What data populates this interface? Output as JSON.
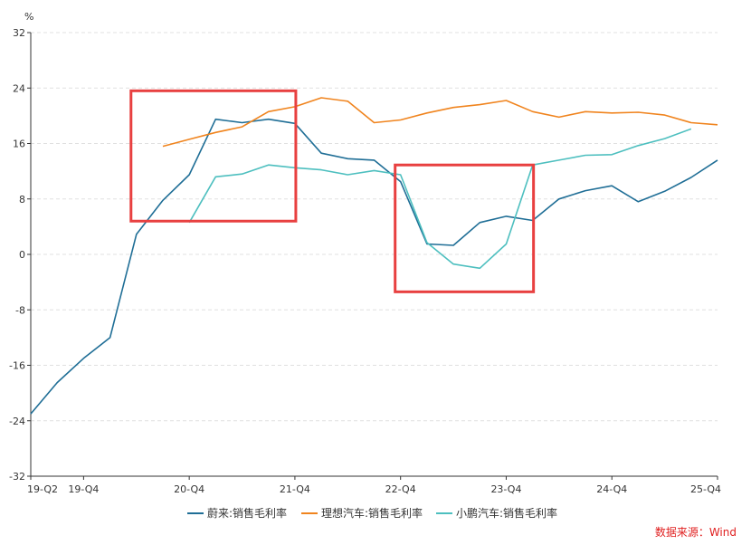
{
  "chart_data": {
    "type": "line",
    "title": "",
    "xlabel": "",
    "ylabel": "",
    "yunit": "%",
    "ylim": [
      -32,
      32
    ],
    "yticks": [
      -32,
      -24,
      -16,
      -8,
      0,
      8,
      16,
      24,
      32
    ],
    "grid": "horizontal-dashed",
    "legend_position": "bottom",
    "x": [
      "19-Q2",
      "19-Q3",
      "19-Q4",
      "20-Q1",
      "20-Q2",
      "20-Q3",
      "20-Q4",
      "21-Q1",
      "21-Q2",
      "21-Q3",
      "21-Q4",
      "22-Q1",
      "22-Q2",
      "22-Q3",
      "22-Q4",
      "23-Q1",
      "23-Q2",
      "23-Q3",
      "23-Q4",
      "24-Q1",
      "24-Q2",
      "24-Q3",
      "24-Q4",
      "25-Q1",
      "25-Q2",
      "25-Q3",
      "25-Q4"
    ],
    "xtick_labels": [
      "19-Q2",
      "19-Q4",
      "20-Q4",
      "21-Q4",
      "22-Q4",
      "23-Q4",
      "24-Q4",
      "25-Q4"
    ],
    "series": [
      {
        "name": "蔚来:销售毛利率",
        "color": "#1f6e96",
        "values": [
          -23.0,
          -18.5,
          -15.0,
          -12.0,
          2.9,
          7.8,
          11.5,
          19.5,
          19.0,
          19.5,
          18.9,
          14.6,
          13.8,
          13.6,
          10.5,
          1.5,
          1.3,
          4.6,
          5.5,
          4.9,
          8.0,
          9.2,
          9.9,
          7.6,
          9.1,
          11.1,
          13.6
        ]
      },
      {
        "name": "理想汽车:销售毛利率",
        "color": "#f0841e",
        "values": [
          null,
          null,
          null,
          null,
          null,
          15.6,
          16.6,
          17.6,
          18.4,
          20.6,
          21.3,
          22.6,
          22.1,
          19.0,
          19.4,
          20.4,
          21.2,
          21.6,
          22.2,
          20.6,
          19.8,
          20.6,
          20.4,
          20.5,
          20.1,
          19.0,
          18.7
        ]
      },
      {
        "name": "小鹏汽车:销售毛利率",
        "color": "#4dbfbf",
        "values": [
          null,
          null,
          null,
          null,
          null,
          null,
          4.6,
          11.2,
          11.6,
          12.9,
          12.5,
          12.2,
          11.5,
          12.1,
          11.5,
          1.7,
          -1.4,
          -2.0,
          1.5,
          12.9,
          13.6,
          14.3,
          14.4,
          15.7,
          16.7,
          18.1,
          null
        ]
      }
    ],
    "annotations": [
      {
        "type": "highlight-box",
        "color": "#e84040",
        "x_from": "20-Q2",
        "x_to": "21-Q4",
        "y_from": 4.8,
        "y_to": 23.6
      },
      {
        "type": "highlight-box",
        "color": "#e84040",
        "x_from": "22-Q4",
        "x_to": "24-Q1",
        "y_from": -5.4,
        "y_to": 12.9
      }
    ]
  },
  "source_label": "数据来源：Wind",
  "colors": {
    "axis": "#333333",
    "grid": "#e0e0e0",
    "box": "#e84040"
  }
}
